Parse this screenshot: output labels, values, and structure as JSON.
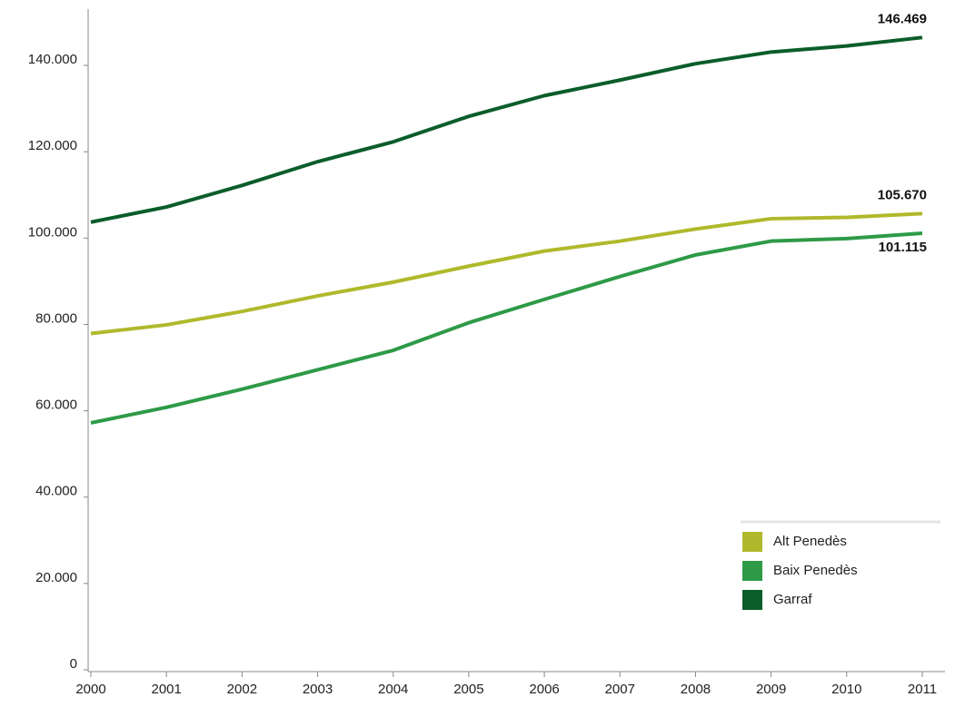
{
  "chart_data": {
    "type": "line",
    "x": [
      2000,
      2001,
      2002,
      2003,
      2004,
      2005,
      2006,
      2007,
      2008,
      2009,
      2010,
      2011
    ],
    "xlim": [
      2000,
      2011
    ],
    "xticks": [
      2000,
      2001,
      2002,
      2003,
      2004,
      2005,
      2006,
      2007,
      2008,
      2009,
      2010,
      2011
    ],
    "ylim": [
      0,
      152000
    ],
    "yticks": [
      0,
      {
        "value": 20000,
        "label": "20.000"
      },
      {
        "value": 40000,
        "label": "40.000"
      },
      {
        "value": 60000,
        "label": "60.000"
      },
      {
        "value": 80000,
        "label": "80.000"
      },
      {
        "value": 100000,
        "label": "100.000"
      },
      {
        "value": 120000,
        "label": "120.000"
      },
      {
        "value": 140000,
        "label": "140.000"
      }
    ],
    "legend": "lower right",
    "series": [
      {
        "name": "Alt Penedès",
        "color": "#b0b92b",
        "values": [
          77900,
          79900,
          83000,
          86600,
          89800,
          93500,
          97000,
          99300,
          102100,
          104500,
          104800,
          105670
        ],
        "value_labels": [
          null,
          null,
          null,
          null,
          null,
          null,
          null,
          null,
          null,
          null,
          null,
          "105.670"
        ]
      },
      {
        "name": "Baix Penedès",
        "color": "#2e9a47",
        "values": [
          57200,
          60800,
          65000,
          69500,
          74000,
          80400,
          85800,
          91100,
          96100,
          99300,
          99900,
          101115
        ],
        "value_labels": [
          null,
          null,
          null,
          null,
          null,
          null,
          null,
          null,
          null,
          null,
          null,
          "101.115"
        ]
      },
      {
        "name": "Garraf",
        "color": "#0b5d2a",
        "values": [
          103700,
          107200,
          112200,
          117700,
          122300,
          128200,
          133000,
          136600,
          140400,
          143100,
          144500,
          146469
        ],
        "value_labels": [
          null,
          null,
          null,
          null,
          null,
          null,
          null,
          null,
          null,
          null,
          null,
          "146.469"
        ]
      }
    ]
  }
}
